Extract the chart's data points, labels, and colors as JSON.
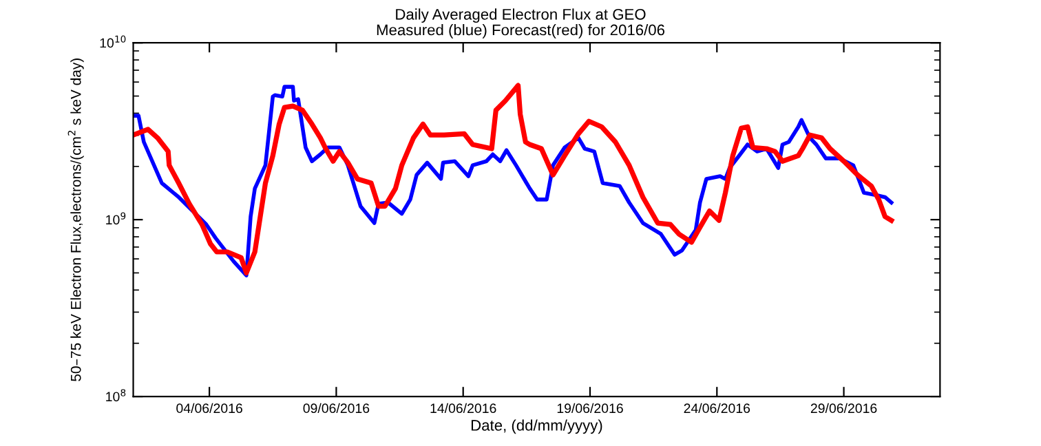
{
  "chart_data": {
    "type": "line",
    "title": "Daily Averaged Electron Flux at GEO",
    "subtitle": "Measured (blue) Forecast(red) for 2016/06",
    "xlabel": "Date, (dd/mm/yyyy)",
    "ylabel": "50–75 keV Electron Flux,electrons/(cm$^{2}$ s keV day)",
    "log": "y",
    "grid": false,
    "xlim": [
      "2016-06-01T00:00",
      "2016-07-02T19:00"
    ],
    "xticks": [
      {
        "value": "2016-06-04",
        "label": "04/06/2016"
      },
      {
        "value": "2016-06-09",
        "label": "09/06/2016"
      },
      {
        "value": "2016-06-14",
        "label": "14/06/2016"
      },
      {
        "value": "2016-06-19",
        "label": "19/06/2016"
      },
      {
        "value": "2016-06-24",
        "label": "24/06/2016"
      },
      {
        "value": "2016-06-29",
        "label": "29/06/2016"
      }
    ],
    "ylim": [
      100000000.0,
      10000000000.0
    ],
    "yticks": [
      {
        "value": 100000000.0,
        "label": "10$^{8}$"
      },
      {
        "value": 1000000000.0,
        "label": "10$^{9}$"
      },
      {
        "value": 10000000000.0,
        "label": "10$^{10}$"
      }
    ],
    "series": [
      {
        "color": "#0000ff",
        "x": [
          "2016-06-01T00:00",
          "2016-06-01T05:00",
          "2016-06-01T10:00",
          "2016-06-02T03:00",
          "2016-06-02T19:00",
          "2016-06-03T21:00",
          "2016-06-04T06:00",
          "2016-06-04T23:00",
          "2016-06-05T11:00",
          "2016-06-05T15:00",
          "2016-06-05T19:00",
          "2016-06-06T05:00",
          "2016-06-06T12:00",
          "2016-06-06T14:00",
          "2016-06-06T21:00",
          "2016-06-06T23:00",
          "2016-06-07T07:00",
          "2016-06-07T08:00",
          "2016-06-07T12:00",
          "2016-06-07T19:00",
          "2016-06-08T01:00",
          "2016-06-08T09:00",
          "2016-06-08T16:00",
          "2016-06-09T03:00",
          "2016-06-09T11:00",
          "2016-06-09T23:00",
          "2016-06-10T12:00",
          "2016-06-10T16:00",
          "2016-06-11T01:00",
          "2016-06-11T14:00",
          "2016-06-11T22:00",
          "2016-06-12T04:00",
          "2016-06-12T14:00",
          "2016-06-13T03:00",
          "2016-06-13T05:00",
          "2016-06-13T16:00",
          "2016-06-14T05:00",
          "2016-06-14T09:00",
          "2016-06-14T22:00",
          "2016-06-15T04:00",
          "2016-06-15T11:00",
          "2016-06-15T17:00",
          "2016-06-16T02:00",
          "2016-06-16T15:00",
          "2016-06-16T22:00",
          "2016-06-17T07:00",
          "2016-06-17T13:00",
          "2016-06-18T00:00",
          "2016-06-18T13:00",
          "2016-06-18T19:00",
          "2016-06-19T04:00",
          "2016-06-19T12:00",
          "2016-06-20T04:00",
          "2016-06-20T13:00",
          "2016-06-21T02:00",
          "2016-06-21T19:00",
          "2016-06-22T08:00",
          "2016-06-22T15:00",
          "2016-06-23T04:00",
          "2016-06-23T08:00",
          "2016-06-23T14:00",
          "2016-06-24T03:00",
          "2016-06-24T08:00",
          "2016-06-24T12:00",
          "2016-06-24T21:00",
          "2016-06-25T05:00",
          "2016-06-25T14:00",
          "2016-06-25T23:00",
          "2016-06-26T10:00",
          "2016-06-26T14:00",
          "2016-06-26T20:00",
          "2016-06-27T05:00",
          "2016-06-27T08:00",
          "2016-06-27T16:00",
          "2016-06-27T22:00",
          "2016-06-28T07:00",
          "2016-06-28T20:00",
          "2016-06-29T09:00",
          "2016-06-29T19:00",
          "2016-06-30T08:00",
          "2016-06-30T15:00",
          "2016-06-30T21:00"
        ],
        "values": [
          3870000000.0,
          3870000000.0,
          2750000000.0,
          1610000000.0,
          1340000000.0,
          940000000.0,
          785000000.0,
          580000000.0,
          484000000.0,
          1040000000.0,
          1500000000.0,
          2030000000.0,
          4970000000.0,
          5060000000.0,
          4970000000.0,
          5640000000.0,
          5640000000.0,
          4710000000.0,
          4800000000.0,
          2560000000.0,
          2140000000.0,
          2340000000.0,
          2560000000.0,
          2560000000.0,
          2030000000.0,
          1190000000.0,
          957000000.0,
          1230000000.0,
          1250000000.0,
          1080000000.0,
          1300000000.0,
          1790000000.0,
          2100000000.0,
          1700000000.0,
          2100000000.0,
          2140000000.0,
          1760000000.0,
          2030000000.0,
          2140000000.0,
          2340000000.0,
          2140000000.0,
          2470000000.0,
          2030000000.0,
          1500000000.0,
          1300000000.0,
          1300000000.0,
          2030000000.0,
          2560000000.0,
          2900000000.0,
          2520000000.0,
          2430000000.0,
          1610000000.0,
          1550000000.0,
          1250000000.0,
          957000000.0,
          830000000.0,
          634000000.0,
          670000000.0,
          875000000.0,
          1250000000.0,
          1700000000.0,
          1760000000.0,
          1700000000.0,
          1960000000.0,
          2300000000.0,
          2660000000.0,
          2430000000.0,
          2520000000.0,
          1960000000.0,
          2660000000.0,
          2750000000.0,
          3350000000.0,
          3660000000.0,
          2900000000.0,
          2660000000.0,
          2220000000.0,
          2220000000.0,
          2030000000.0,
          1420000000.0,
          1370000000.0,
          1340000000.0,
          1250000000.0
        ]
      },
      {
        "color": "#ff0000",
        "x": [
          "2016-06-01T00:00",
          "2016-06-01T14:00",
          "2016-06-01T23:00",
          "2016-06-02T09:00",
          "2016-06-02T10:00",
          "2016-06-02T19:00",
          "2016-06-03T05:00",
          "2016-06-03T17:00",
          "2016-06-04T01:00",
          "2016-06-04T07:00",
          "2016-06-04T17:00",
          "2016-06-05T06:00",
          "2016-06-05T11:00",
          "2016-06-05T19:00",
          "2016-06-05T23:00",
          "2016-06-06T05:00",
          "2016-06-06T12:00",
          "2016-06-06T18:00",
          "2016-06-06T23:00",
          "2016-06-07T07:00",
          "2016-06-07T16:00",
          "2016-06-08T01:00",
          "2016-06-08T09:00",
          "2016-06-08T14:00",
          "2016-06-08T21:00",
          "2016-06-09T03:00",
          "2016-06-09T11:00",
          "2016-06-09T20:00",
          "2016-06-10T09:00",
          "2016-06-10T16:00",
          "2016-06-10T22:00",
          "2016-06-11T08:00",
          "2016-06-11T14:00",
          "2016-06-12T01:00",
          "2016-06-12T10:00",
          "2016-06-12T17:00",
          "2016-06-13T06:00",
          "2016-06-14T01:00",
          "2016-06-14T09:00",
          "2016-06-15T03:00",
          "2016-06-15T07:00",
          "2016-06-15T16:00",
          "2016-06-16T04:00",
          "2016-06-16T06:00",
          "2016-06-16T11:00",
          "2016-06-16T15:00",
          "2016-06-17T02:00",
          "2016-06-17T13:00",
          "2016-06-18T00:00",
          "2016-06-18T13:00",
          "2016-06-18T23:00",
          "2016-06-19T11:00",
          "2016-06-20T00:00",
          "2016-06-20T13:00",
          "2016-06-21T02:00",
          "2016-06-21T16:00",
          "2016-06-22T04:00",
          "2016-06-22T12:00",
          "2016-06-23T00:00",
          "2016-06-23T08:00",
          "2016-06-23T17:00",
          "2016-06-24T02:00",
          "2016-06-24T08:00",
          "2016-06-24T15:00",
          "2016-06-24T23:00",
          "2016-06-25T05:00",
          "2016-06-25T10:00",
          "2016-06-25T23:00",
          "2016-06-26T07:00",
          "2016-06-26T14:00",
          "2016-06-27T05:00",
          "2016-06-27T09:00",
          "2016-06-27T16:00",
          "2016-06-28T03:00",
          "2016-06-28T11:00",
          "2016-06-29T00:00",
          "2016-06-29T13:00",
          "2016-06-30T02:00",
          "2016-06-30T09:00",
          "2016-06-30T15:00",
          "2016-06-30T21:00"
        ],
        "values": [
          3010000000.0,
          3240000000.0,
          2900000000.0,
          2430000000.0,
          2030000000.0,
          1610000000.0,
          1230000000.0,
          940000000.0,
          730000000.0,
          657000000.0,
          657000000.0,
          610000000.0,
          500000000.0,
          657000000.0,
          940000000.0,
          1610000000.0,
          2300000000.0,
          3470000000.0,
          4310000000.0,
          4390000000.0,
          4160000000.0,
          3470000000.0,
          2900000000.0,
          2520000000.0,
          2140000000.0,
          2430000000.0,
          2100000000.0,
          1700000000.0,
          1610000000.0,
          1190000000.0,
          1190000000.0,
          1500000000.0,
          2030000000.0,
          2900000000.0,
          3470000000.0,
          3010000000.0,
          3010000000.0,
          3060000000.0,
          2660000000.0,
          2520000000.0,
          4160000000.0,
          4710000000.0,
          5740000000.0,
          3940000000.0,
          2750000000.0,
          2660000000.0,
          2520000000.0,
          1790000000.0,
          2300000000.0,
          3060000000.0,
          3600000000.0,
          3350000000.0,
          2750000000.0,
          2030000000.0,
          1340000000.0,
          957000000.0,
          940000000.0,
          830000000.0,
          745000000.0,
          906000000.0,
          1120000000.0,
          990000000.0,
          1420000000.0,
          2300000000.0,
          3290000000.0,
          3350000000.0,
          2560000000.0,
          2520000000.0,
          2430000000.0,
          2140000000.0,
          2300000000.0,
          2520000000.0,
          3010000000.0,
          2900000000.0,
          2520000000.0,
          2140000000.0,
          1790000000.0,
          1550000000.0,
          1300000000.0,
          1040000000.0,
          990000000.0
        ]
      }
    ]
  }
}
